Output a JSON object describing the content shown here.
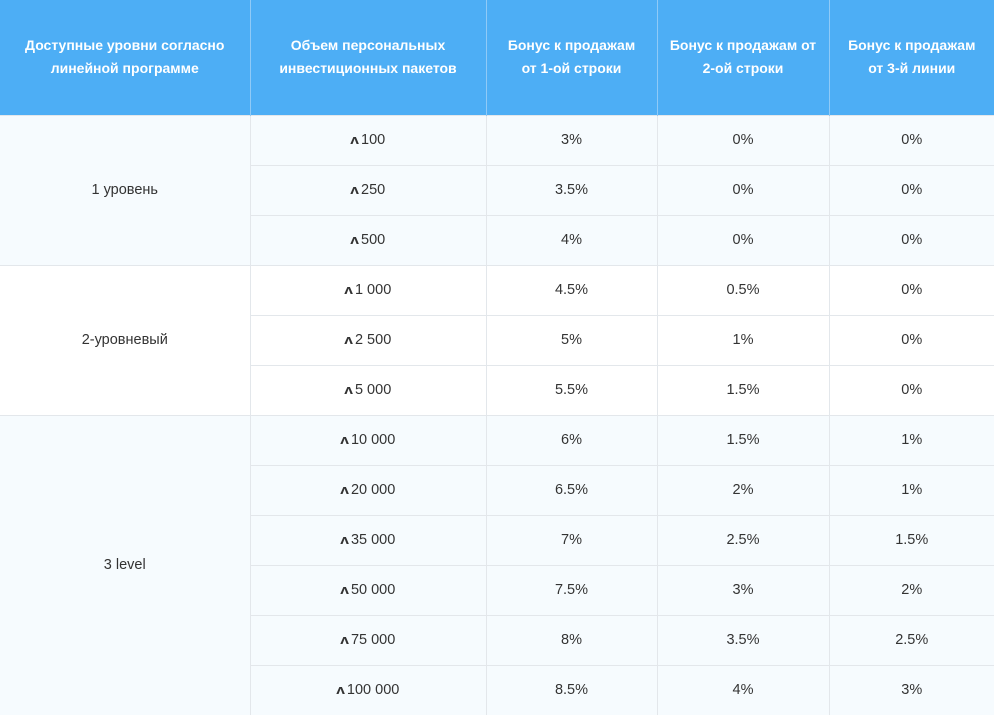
{
  "colors": {
    "header_bg": "#4daef5",
    "header_text": "#ffffff",
    "band_alt_bg": "#f6fbfe",
    "border": "#e3e7eb"
  },
  "currency_icon": "tron-arrow-icon",
  "currency_glyph": "ʌ",
  "headers": [
    "Доступные уровни согласно линейной программе",
    "Объем персональных инвестиционных пакетов",
    "Бонус к продажам от 1-ой строки",
    "Бонус к продажам от 2-ой строки",
    "Бонус к продажам от 3-й линии"
  ],
  "groups": [
    {
      "level": "1 уровень",
      "rows": [
        {
          "amount": "100",
          "b1": "3%",
          "b2": "0%",
          "b3": "0%"
        },
        {
          "amount": "250",
          "b1": "3.5%",
          "b2": "0%",
          "b3": "0%"
        },
        {
          "amount": "500",
          "b1": "4%",
          "b2": "0%",
          "b3": "0%"
        }
      ]
    },
    {
      "level": "2-уровневый",
      "rows": [
        {
          "amount": "1 000",
          "b1": "4.5%",
          "b2": "0.5%",
          "b3": "0%"
        },
        {
          "amount": "2 500",
          "b1": "5%",
          "b2": "1%",
          "b3": "0%"
        },
        {
          "amount": "5 000",
          "b1": "5.5%",
          "b2": "1.5%",
          "b3": "0%"
        }
      ]
    },
    {
      "level": "3 level",
      "rows": [
        {
          "amount": "10 000",
          "b1": "6%",
          "b2": "1.5%",
          "b3": "1%"
        },
        {
          "amount": "20 000",
          "b1": "6.5%",
          "b2": "2%",
          "b3": "1%"
        },
        {
          "amount": "35 000",
          "b1": "7%",
          "b2": "2.5%",
          "b3": "1.5%"
        },
        {
          "amount": "50 000",
          "b1": "7.5%",
          "b2": "3%",
          "b3": "2%"
        },
        {
          "amount": "75 000",
          "b1": "8%",
          "b2": "3.5%",
          "b3": "2.5%"
        },
        {
          "amount": "100 000",
          "b1": "8.5%",
          "b2": "4%",
          "b3": "3%"
        }
      ]
    }
  ]
}
